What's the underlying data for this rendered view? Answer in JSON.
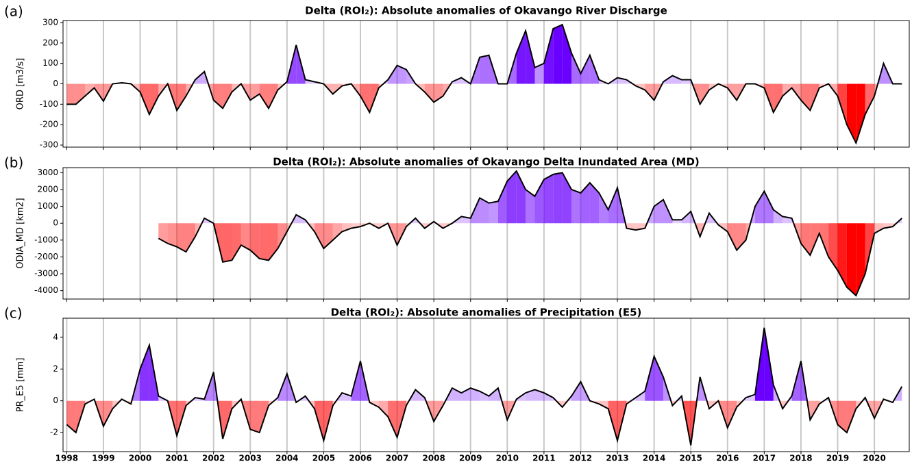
{
  "chart_data": [
    {
      "type": "line",
      "panel_label": "(a)",
      "title": "Delta (ROI₂): Absolute anomalies of Okavango River Discharge",
      "y_label": "ORD [m3/s]",
      "xlim": [
        1997.9,
        2020.95
      ],
      "xticks": [
        1998,
        1999,
        2000,
        2001,
        2002,
        2003,
        2004,
        2005,
        2006,
        2007,
        2008,
        2009,
        2010,
        2011,
        2012,
        2013,
        2014,
        2015,
        2016,
        2017,
        2018,
        2019,
        2020
      ],
      "show_xtick_labels": false,
      "ylim": [
        -310,
        310
      ],
      "yticks": [
        -300,
        -200,
        -100,
        0,
        100,
        200,
        300
      ],
      "grid": true,
      "line_color": "#000000",
      "pos_color": "#6a00ff",
      "neg_color": "#ff0000",
      "x": [
        1998,
        1998.25,
        1998.5,
        1998.75,
        1999,
        1999.25,
        1999.5,
        1999.75,
        2000,
        2000.25,
        2000.5,
        2000.75,
        2001,
        2001.25,
        2001.5,
        2001.75,
        2002,
        2002.25,
        2002.5,
        2002.75,
        2003,
        2003.25,
        2003.5,
        2003.75,
        2004,
        2004.25,
        2004.5,
        2004.75,
        2005,
        2005.25,
        2005.5,
        2005.75,
        2006,
        2006.25,
        2006.5,
        2006.75,
        2007,
        2007.25,
        2007.5,
        2007.75,
        2008,
        2008.25,
        2008.5,
        2008.75,
        2009,
        2009.25,
        2009.5,
        2009.75,
        2010,
        2010.25,
        2010.5,
        2010.75,
        2011,
        2011.25,
        2011.5,
        2011.75,
        2012,
        2012.25,
        2012.5,
        2012.75,
        2013,
        2013.25,
        2013.5,
        2013.75,
        2014,
        2014.25,
        2014.5,
        2014.75,
        2015,
        2015.25,
        2015.5,
        2015.75,
        2016,
        2016.25,
        2016.5,
        2016.75,
        2017,
        2017.25,
        2017.5,
        2017.75,
        2018,
        2018.25,
        2018.5,
        2018.75,
        2019,
        2019.25,
        2019.5,
        2019.75,
        2020,
        2020.25,
        2020.5,
        2020.75
      ],
      "values": [
        -100,
        -100,
        -60,
        -20,
        -85,
        0,
        5,
        0,
        -40,
        -150,
        -60,
        0,
        -130,
        -60,
        20,
        60,
        -80,
        -120,
        -40,
        0,
        -80,
        -50,
        -120,
        -30,
        10,
        190,
        20,
        10,
        0,
        -50,
        -10,
        0,
        -60,
        -140,
        -20,
        20,
        90,
        70,
        0,
        -40,
        -90,
        -60,
        10,
        30,
        0,
        130,
        140,
        0,
        0,
        150,
        260,
        80,
        100,
        270,
        290,
        150,
        50,
        140,
        20,
        0,
        30,
        20,
        -10,
        -30,
        -80,
        10,
        40,
        20,
        20,
        -100,
        -30,
        0,
        -20,
        -80,
        0,
        0,
        -20,
        -140,
        -60,
        -20,
        -80,
        -130,
        -20,
        0,
        -60,
        -200,
        -290,
        -150,
        -60,
        100,
        0,
        0
      ]
    },
    {
      "type": "line",
      "panel_label": "(b)",
      "title": "Delta (ROI₂): Absolute anomalies of Okavango Delta Inundated Area (MD)",
      "y_label": "ODIA_MD [km2]",
      "xlim": [
        1997.9,
        2020.95
      ],
      "xticks": [
        1998,
        1999,
        2000,
        2001,
        2002,
        2003,
        2004,
        2005,
        2006,
        2007,
        2008,
        2009,
        2010,
        2011,
        2012,
        2013,
        2014,
        2015,
        2016,
        2017,
        2018,
        2019,
        2020
      ],
      "show_xtick_labels": false,
      "ylim": [
        -4500,
        3300
      ],
      "yticks": [
        -4000,
        -3000,
        -2000,
        -1000,
        0,
        1000,
        2000,
        3000
      ],
      "grid": true,
      "line_color": "#000000",
      "pos_color": "#6a00ff",
      "neg_color": "#ff0000",
      "x": [
        2000.5,
        2000.75,
        2001,
        2001.25,
        2001.5,
        2001.75,
        2002,
        2002.25,
        2002.5,
        2002.75,
        2003,
        2003.25,
        2003.5,
        2003.75,
        2004,
        2004.25,
        2004.5,
        2004.75,
        2005,
        2005.25,
        2005.5,
        2005.75,
        2006,
        2006.25,
        2006.5,
        2006.75,
        2007,
        2007.25,
        2007.5,
        2007.75,
        2008,
        2008.25,
        2008.5,
        2008.75,
        2009,
        2009.25,
        2009.5,
        2009.75,
        2010,
        2010.25,
        2010.5,
        2010.75,
        2011,
        2011.25,
        2011.5,
        2011.75,
        2012,
        2012.25,
        2012.5,
        2012.75,
        2013,
        2013.25,
        2013.5,
        2013.75,
        2014,
        2014.25,
        2014.5,
        2014.75,
        2015,
        2015.25,
        2015.5,
        2015.75,
        2016,
        2016.25,
        2016.5,
        2016.75,
        2017,
        2017.25,
        2017.5,
        2017.75,
        2018,
        2018.25,
        2018.5,
        2018.75,
        2019,
        2019.25,
        2019.5,
        2019.75,
        2020,
        2020.25,
        2020.5,
        2020.75
      ],
      "values": [
        -900,
        -1200,
        -1400,
        -1700,
        -800,
        300,
        0,
        -2300,
        -2200,
        -1300,
        -1600,
        -2100,
        -2200,
        -1500,
        -500,
        500,
        200,
        -500,
        -1500,
        -1000,
        -500,
        -300,
        -200,
        0,
        -300,
        0,
        -1300,
        -200,
        300,
        -300,
        100,
        -300,
        0,
        400,
        300,
        1500,
        1200,
        1300,
        2500,
        3100,
        2000,
        1600,
        2600,
        2900,
        3000,
        2000,
        1800,
        2400,
        1800,
        800,
        2100,
        -300,
        -400,
        -300,
        1000,
        1400,
        200,
        200,
        700,
        -800,
        600,
        -100,
        -500,
        -1600,
        -1000,
        1000,
        1900,
        800,
        400,
        300,
        -1200,
        -1900,
        -600,
        -2000,
        -2800,
        -3800,
        -4300,
        -3000,
        -600,
        -300,
        -200,
        300
      ]
    },
    {
      "type": "line",
      "panel_label": "(c)",
      "title": "Delta (ROI₂): Absolute anomalies of Precipitation (E5)",
      "y_label": "PR_E5 [mm]",
      "xlim": [
        1997.9,
        2020.95
      ],
      "xticks": [
        1998,
        1999,
        2000,
        2001,
        2002,
        2003,
        2004,
        2005,
        2006,
        2007,
        2008,
        2009,
        2010,
        2011,
        2012,
        2013,
        2014,
        2015,
        2016,
        2017,
        2018,
        2019,
        2020
      ],
      "show_xtick_labels": true,
      "ylim": [
        -3.2,
        5.2
      ],
      "yticks": [
        -2,
        0,
        2,
        4
      ],
      "grid": true,
      "line_color": "#000000",
      "pos_color": "#6a00ff",
      "neg_color": "#ff0000",
      "x": [
        1998,
        1998.25,
        1998.5,
        1998.75,
        1999,
        1999.25,
        1999.5,
        1999.75,
        2000,
        2000.25,
        2000.5,
        2000.75,
        2001,
        2001.25,
        2001.5,
        2001.75,
        2002,
        2002.25,
        2002.5,
        2002.75,
        2003,
        2003.25,
        2003.5,
        2003.75,
        2004,
        2004.25,
        2004.5,
        2004.75,
        2005,
        2005.25,
        2005.5,
        2005.75,
        2006,
        2006.25,
        2006.5,
        2006.75,
        2007,
        2007.25,
        2007.5,
        2007.75,
        2008,
        2008.25,
        2008.5,
        2008.75,
        2009,
        2009.25,
        2009.5,
        2009.75,
        2010,
        2010.25,
        2010.5,
        2010.75,
        2011,
        2011.25,
        2011.5,
        2011.75,
        2012,
        2012.25,
        2012.5,
        2012.75,
        2013,
        2013.25,
        2013.5,
        2013.75,
        2014,
        2014.25,
        2014.5,
        2014.75,
        2015,
        2015.25,
        2015.5,
        2015.75,
        2016,
        2016.25,
        2016.5,
        2016.75,
        2017,
        2017.25,
        2017.5,
        2017.75,
        2018,
        2018.25,
        2018.5,
        2018.75,
        2019,
        2019.25,
        2019.5,
        2019.75,
        2020,
        2020.25,
        2020.5,
        2020.75
      ],
      "values": [
        -1.5,
        -2.0,
        -0.2,
        0.1,
        -1.6,
        -0.5,
        0.1,
        -0.2,
        2.0,
        3.5,
        0.3,
        0,
        -2.2,
        -0.3,
        0.2,
        0.1,
        1.8,
        -2.4,
        -0.5,
        0.1,
        -1.8,
        -2.0,
        -0.3,
        0.2,
        1.7,
        -0.1,
        0.3,
        -0.5,
        -2.5,
        -0.3,
        0.5,
        0.3,
        2.5,
        -0.1,
        -0.4,
        -1.0,
        -2.3,
        -0.3,
        0.7,
        0.2,
        -1.3,
        -0.3,
        0.8,
        0.5,
        0.8,
        0.6,
        0.3,
        0.8,
        -1.2,
        0.1,
        0.5,
        0.7,
        0.5,
        0.2,
        -0.4,
        0.3,
        1.2,
        0.0,
        -0.2,
        -0.5,
        -2.5,
        -0.2,
        0.2,
        0.6,
        2.8,
        1.5,
        -0.3,
        0.3,
        -2.8,
        1.5,
        -0.5,
        0,
        -1.7,
        -0.4,
        0.2,
        0.4,
        4.6,
        1.0,
        -0.5,
        0.3,
        2.5,
        -1.2,
        -0.2,
        0.2,
        -1.5,
        -2.0,
        -0.5,
        0.2,
        -1.1,
        0.1,
        -0.1,
        0.9
      ]
    }
  ]
}
